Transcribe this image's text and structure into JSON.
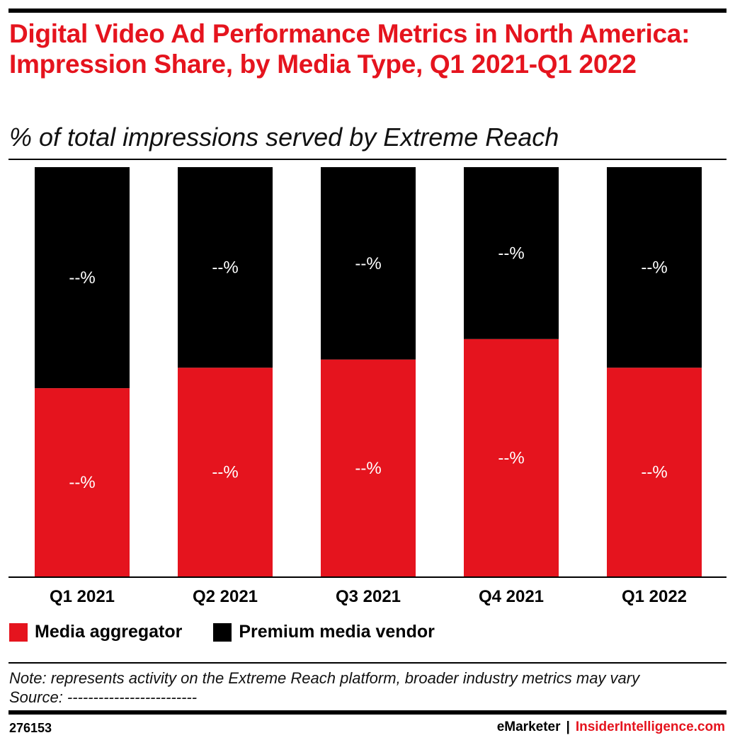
{
  "title": "Digital Video Ad Performance Metrics in North America: Impression Share, by Media Type, Q1 2021-Q1 2022",
  "subtitle": "% of total impressions served by Extreme Reach",
  "colors": {
    "accent": "#e5141e",
    "media_aggregator": "#e5141e",
    "premium_media_vendor": "#000000"
  },
  "chart_data": {
    "type": "bar",
    "stacked": true,
    "categories": [
      "Q1 2021",
      "Q2 2021",
      "Q3 2021",
      "Q4 2021",
      "Q1 2022"
    ],
    "series": [
      {
        "name": "Media aggregator",
        "values": [
          46,
          51,
          53,
          58,
          51
        ],
        "labels": [
          "--%",
          "--%",
          "--%",
          "--%",
          "--%"
        ]
      },
      {
        "name": "Premium media vendor",
        "values": [
          54,
          49,
          47,
          42,
          49
        ],
        "labels": [
          "--%",
          "--%",
          "--%",
          "--%",
          "--%"
        ]
      }
    ],
    "ylim": [
      0,
      100
    ],
    "grid": false,
    "legend_position": "bottom-left"
  },
  "legend": {
    "items": [
      "Media aggregator",
      "Premium media vendor"
    ]
  },
  "note": "Note: represents activity on the Extreme Reach platform, broader industry metrics may vary",
  "source": "Source: -------------------------",
  "footer": {
    "chart_id": "276153",
    "brand": "eMarketer",
    "separator": "|",
    "brand2": "InsiderIntelligence.com"
  }
}
